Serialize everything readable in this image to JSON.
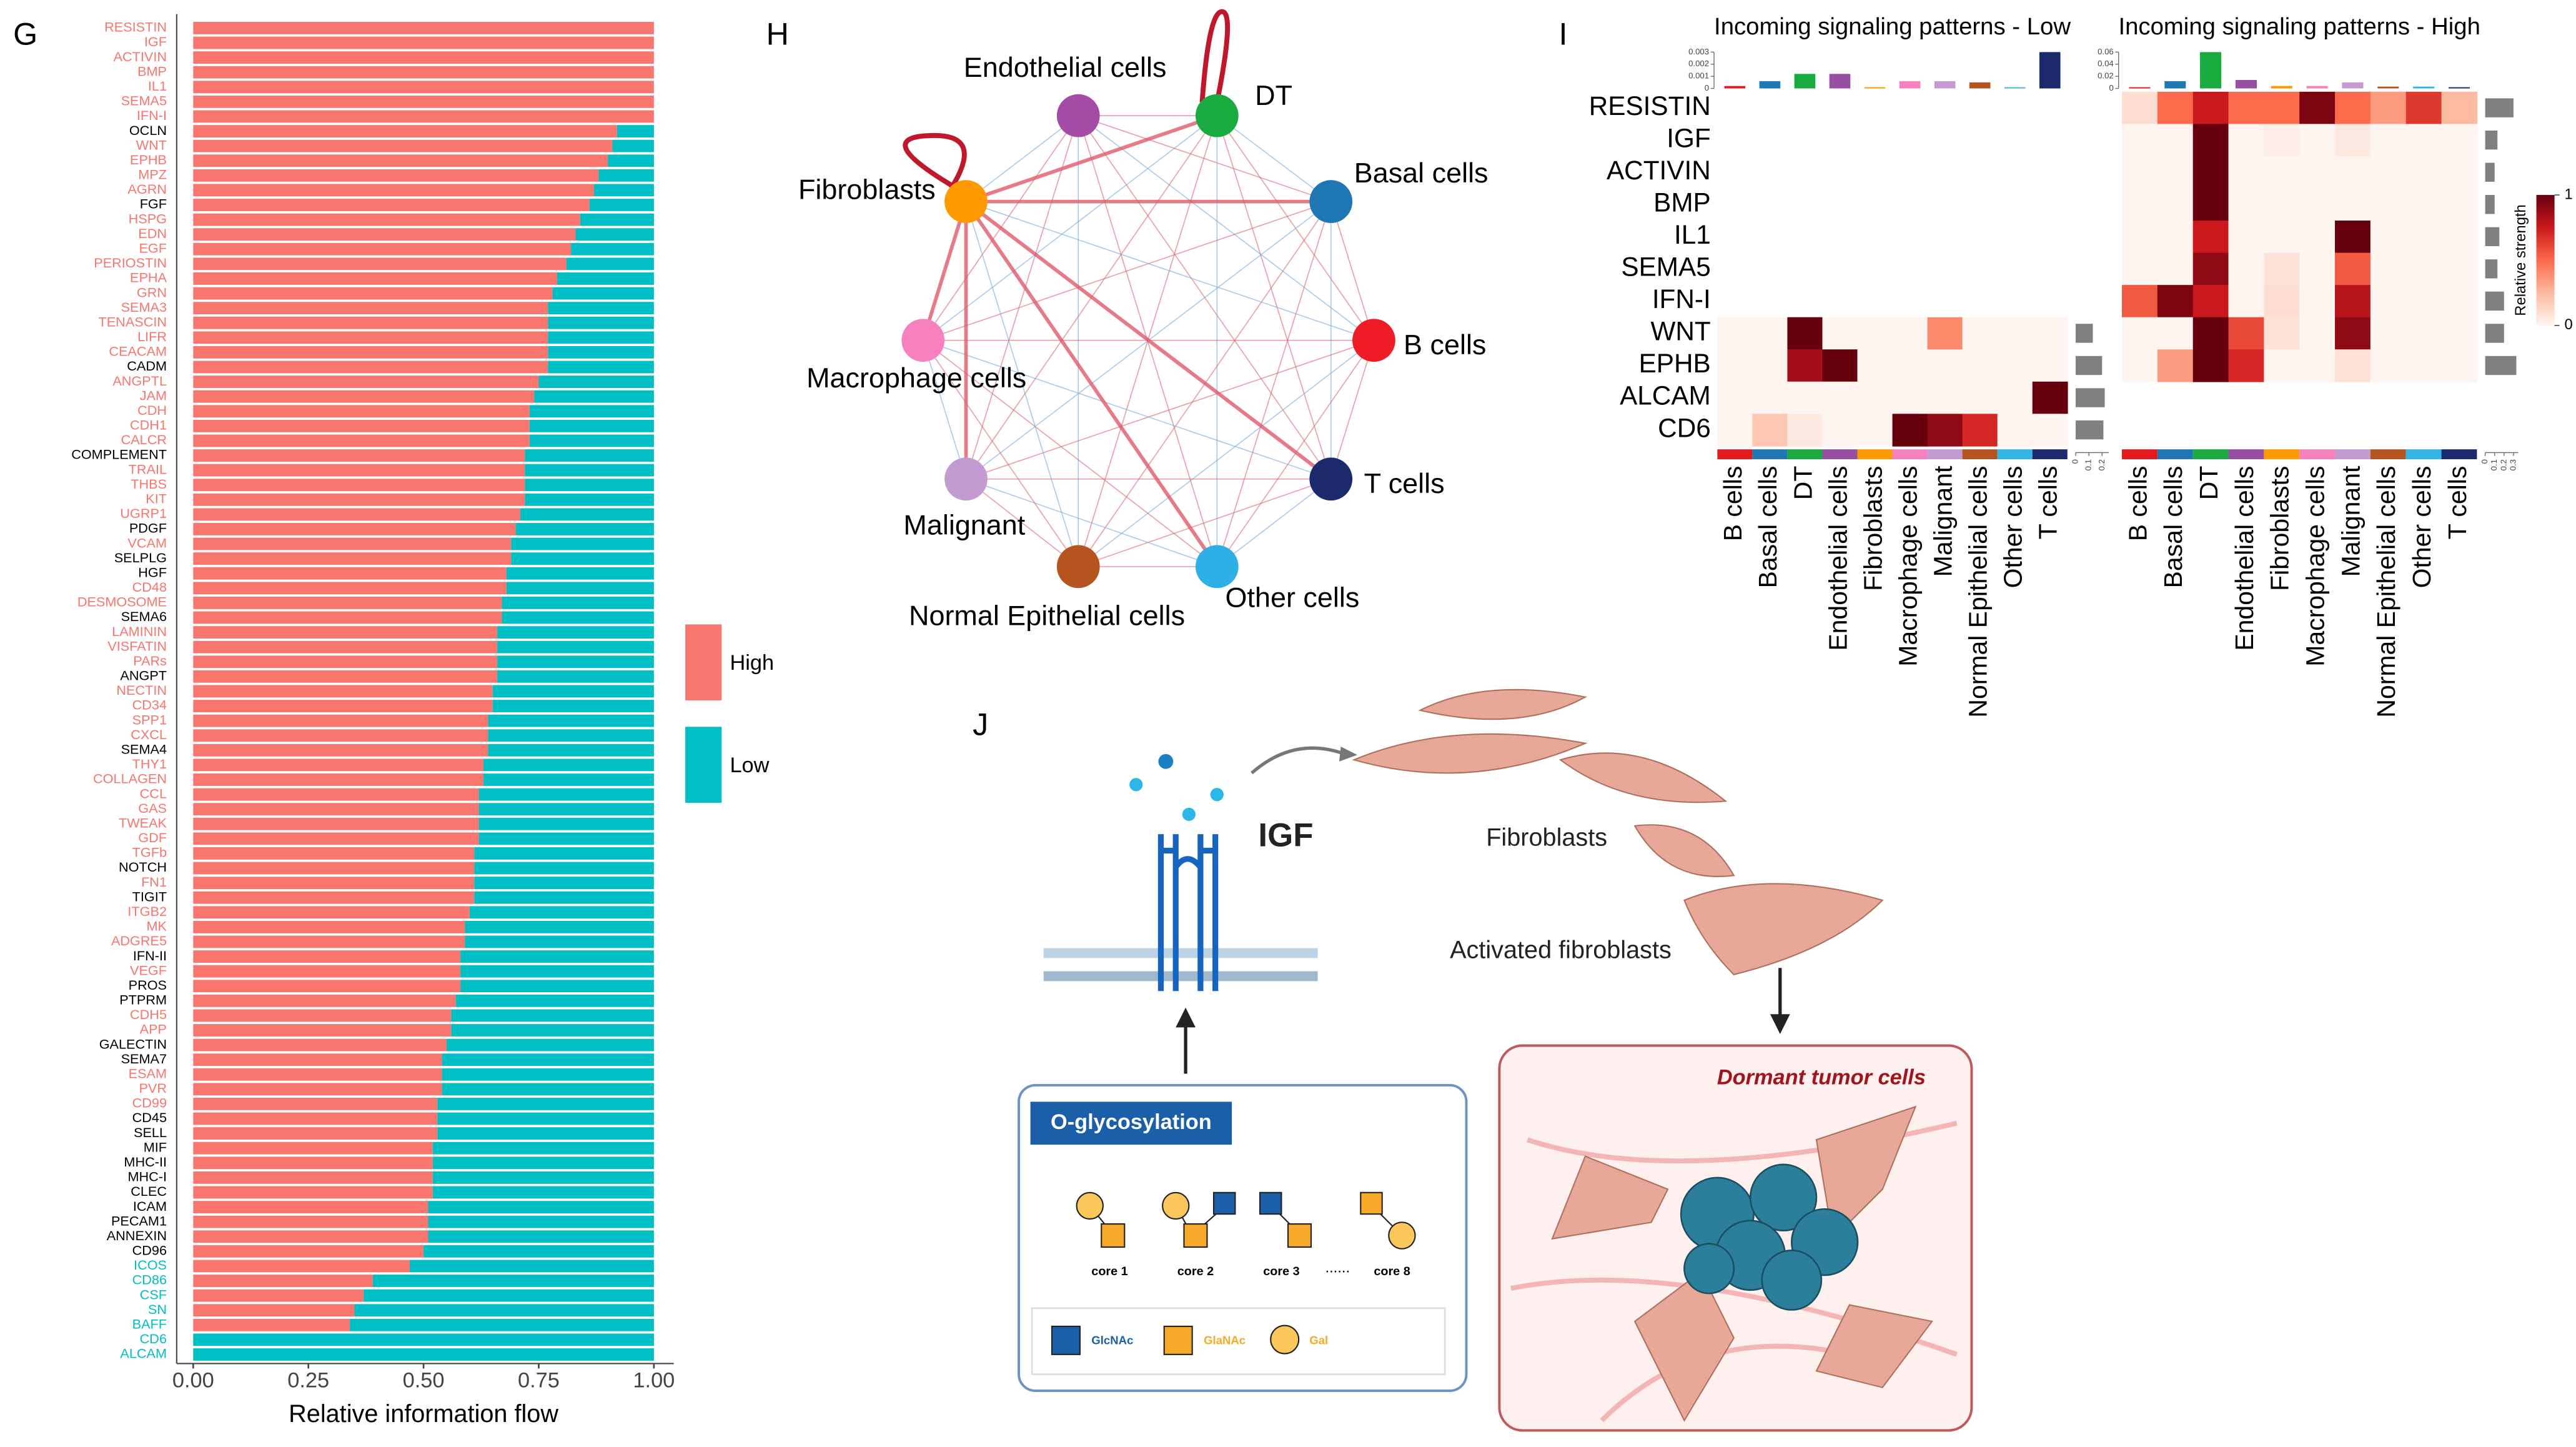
{
  "panels": {
    "g": "G",
    "h": "H",
    "i": "I",
    "j": "J"
  },
  "chart_data": [
    {
      "type": "barh_stacked",
      "categories": [
        "RESISTIN",
        "IGF",
        "ACTIVIN",
        "BMP",
        "IL1",
        "SEMA5",
        "IFN-I",
        "OCLN",
        "WNT",
        "EPHB",
        "MPZ",
        "AGRN",
        "FGF",
        "HSPG",
        "EDN",
        "EGF",
        "PERIOSTIN",
        "EPHA",
        "GRN",
        "SEMA3",
        "TENASCIN",
        "LIFR",
        "CEACAM",
        "CADM",
        "ANGPTL",
        "JAM",
        "CDH",
        "CDH1",
        "CALCR",
        "COMPLEMENT",
        "TRAIL",
        "THBS",
        "KIT",
        "UGRP1",
        "PDGF",
        "VCAM",
        "SELPLG",
        "HGF",
        "CD48",
        "DESMOSOME",
        "SEMA6",
        "LAMININ",
        "VISFATIN",
        "PARs",
        "ANGPT",
        "NECTIN",
        "CD34",
        "SPP1",
        "CXCL",
        "SEMA4",
        "THY1",
        "COLLAGEN",
        "CCL",
        "GAS",
        "TWEAK",
        "GDF",
        "TGFb",
        "NOTCH",
        "FN1",
        "TIGIT",
        "ITGB2",
        "MK",
        "ADGRE5",
        "IFN-II",
        "VEGF",
        "PROS",
        "PTPRM",
        "CDH5",
        "APP",
        "GALECTIN",
        "SEMA7",
        "ESAM",
        "PVR",
        "CD99",
        "CD45",
        "SELL",
        "MIF",
        "MHC-II",
        "MHC-I",
        "CLEC",
        "ICAM",
        "PECAM1",
        "ANNEXIN",
        "CD96",
        "ICOS",
        "CD86",
        "CSF",
        "SN",
        "BAFF",
        "CD6",
        "ALCAM"
      ],
      "label_colors": [
        "#f8766d",
        "#f8766d",
        "#f8766d",
        "#f8766d",
        "#f8766d",
        "#f8766d",
        "#f8766d",
        "#000000",
        "#f8766d",
        "#f8766d",
        "#f8766d",
        "#f8766d",
        "#000000",
        "#f8766d",
        "#f8766d",
        "#f8766d",
        "#f8766d",
        "#f8766d",
        "#f8766d",
        "#f8766d",
        "#f8766d",
        "#f8766d",
        "#f8766d",
        "#000000",
        "#f8766d",
        "#f8766d",
        "#f8766d",
        "#f8766d",
        "#f8766d",
        "#000000",
        "#f8766d",
        "#f8766d",
        "#f8766d",
        "#f8766d",
        "#000000",
        "#f8766d",
        "#000000",
        "#000000",
        "#f8766d",
        "#f8766d",
        "#000000",
        "#f8766d",
        "#f8766d",
        "#f8766d",
        "#000000",
        "#f8766d",
        "#f8766d",
        "#f8766d",
        "#f8766d",
        "#000000",
        "#f8766d",
        "#f8766d",
        "#f8766d",
        "#f8766d",
        "#f8766d",
        "#f8766d",
        "#f8766d",
        "#000000",
        "#f8766d",
        "#000000",
        "#f8766d",
        "#f8766d",
        "#f8766d",
        "#000000",
        "#f8766d",
        "#000000",
        "#000000",
        "#f8766d",
        "#f8766d",
        "#000000",
        "#000000",
        "#f8766d",
        "#f8766d",
        "#f8766d",
        "#000000",
        "#000000",
        "#000000",
        "#000000",
        "#000000",
        "#000000",
        "#000000",
        "#000000",
        "#000000",
        "#000000",
        "#00bfc4",
        "#00bfc4",
        "#00bfc4",
        "#00bfc4",
        "#00bfc4",
        "#00bfc4",
        "#00bfc4"
      ],
      "series": [
        {
          "name": "High",
          "color": "#f8766d",
          "values": [
            1,
            1,
            1,
            1,
            1,
            1,
            1,
            0.92,
            0.91,
            0.9,
            0.88,
            0.87,
            0.86,
            0.84,
            0.83,
            0.82,
            0.81,
            0.79,
            0.78,
            0.77,
            0.77,
            0.77,
            0.77,
            0.77,
            0.75,
            0.74,
            0.73,
            0.73,
            0.73,
            0.72,
            0.72,
            0.72,
            0.72,
            0.71,
            0.7,
            0.69,
            0.69,
            0.68,
            0.68,
            0.67,
            0.67,
            0.66,
            0.66,
            0.66,
            0.66,
            0.65,
            0.65,
            0.64,
            0.64,
            0.64,
            0.63,
            0.63,
            0.62,
            0.62,
            0.62,
            0.62,
            0.61,
            0.61,
            0.61,
            0.61,
            0.6,
            0.59,
            0.59,
            0.58,
            0.58,
            0.58,
            0.57,
            0.56,
            0.56,
            0.55,
            0.54,
            0.54,
            0.54,
            0.53,
            0.53,
            0.53,
            0.52,
            0.52,
            0.52,
            0.52,
            0.51,
            0.51,
            0.51,
            0.5,
            0.47,
            0.39,
            0.37,
            0.35,
            0.34,
            0,
            0
          ]
        },
        {
          "name": "Low",
          "color": "#00bfc4",
          "values": [
            0,
            0,
            0,
            0,
            0,
            0,
            0,
            0.08,
            0.09,
            0.1,
            0.12,
            0.13,
            0.14,
            0.16,
            0.17,
            0.18,
            0.19,
            0.21,
            0.22,
            0.23,
            0.23,
            0.23,
            0.23,
            0.23,
            0.25,
            0.26,
            0.27,
            0.27,
            0.27,
            0.28,
            0.28,
            0.28,
            0.28,
            0.29,
            0.3,
            0.31,
            0.31,
            0.32,
            0.32,
            0.33,
            0.33,
            0.34,
            0.34,
            0.34,
            0.34,
            0.35,
            0.35,
            0.36,
            0.36,
            0.36,
            0.37,
            0.37,
            0.38,
            0.38,
            0.38,
            0.38,
            0.39,
            0.39,
            0.39,
            0.39,
            0.4,
            0.41,
            0.41,
            0.42,
            0.42,
            0.42,
            0.43,
            0.44,
            0.44,
            0.45,
            0.46,
            0.46,
            0.46,
            0.47,
            0.47,
            0.47,
            0.48,
            0.48,
            0.48,
            0.48,
            0.49,
            0.49,
            0.49,
            0.5,
            0.53,
            0.61,
            0.63,
            0.65,
            0.66,
            1,
            1
          ]
        }
      ],
      "xlabel": "Relative information flow",
      "xlim": [
        0,
        1
      ],
      "xticks": [
        {
          "value": 0,
          "label": "0.00"
        },
        {
          "value": 0.25,
          "label": "0.25"
        },
        {
          "value": 0.5,
          "label": "0.50"
        },
        {
          "value": 0.75,
          "label": "0.75"
        },
        {
          "value": 1,
          "label": "1.00"
        }
      ],
      "legend": "right"
    },
    {
      "type": "heatmap",
      "title": "Incoming signaling patterns - Low",
      "rows": [
        "RESISTIN",
        "IGF",
        "ACTIVIN",
        "BMP",
        "IL1",
        "SEMA5",
        "IFN-I",
        "WNT",
        "EPHB",
        "ALCAM",
        "CD6"
      ],
      "columns": [
        "B cells",
        "Basal cells",
        "DT",
        "Endothelial cells",
        "Fibroblasts",
        "Macrophage cells",
        "Malignant",
        "Normal Epithelial cells",
        "Other cells",
        "T cells"
      ],
      "column_colors": [
        "#e41a1c",
        "#1f78b4",
        "#1aab40",
        "#984ea3",
        "#ff9900",
        "#f781bf",
        "#c49bd0",
        "#b5541f",
        "#33b5e5",
        "#1a2a6c"
      ],
      "values": [
        [
          null,
          null,
          null,
          null,
          null,
          null,
          null,
          null,
          null,
          null
        ],
        [
          null,
          null,
          null,
          null,
          null,
          null,
          null,
          null,
          null,
          null
        ],
        [
          null,
          null,
          null,
          null,
          null,
          null,
          null,
          null,
          null,
          null
        ],
        [
          null,
          null,
          null,
          null,
          null,
          null,
          null,
          null,
          null,
          null
        ],
        [
          null,
          null,
          null,
          null,
          null,
          null,
          null,
          null,
          null,
          null
        ],
        [
          null,
          null,
          null,
          null,
          null,
          null,
          null,
          null,
          null,
          null
        ],
        [
          null,
          null,
          null,
          null,
          null,
          null,
          null,
          null,
          null,
          null
        ],
        [
          0,
          0,
          1,
          0,
          0,
          0,
          0.4,
          0,
          0,
          0
        ],
        [
          0,
          0,
          0.85,
          1,
          0,
          0,
          0,
          0,
          0,
          0
        ],
        [
          0,
          0,
          0,
          0,
          0,
          0,
          0,
          0,
          0,
          1
        ],
        [
          0,
          0.2,
          0.05,
          0,
          0,
          1,
          0.9,
          0.7,
          0,
          0
        ]
      ],
      "column_totals": [
        0.0002,
        0.0006,
        0.0012,
        0.0012,
        0.0001,
        0.0006,
        0.0006,
        0.0005,
        0.0001,
        0.003
      ],
      "column_totals_ylim": [
        0,
        0.003
      ],
      "column_totals_ticks": [
        0,
        0.001,
        0.002,
        0.003
      ],
      "row_totals": [
        null,
        null,
        null,
        null,
        null,
        null,
        null,
        0.13,
        0.2,
        0.22,
        0.21
      ],
      "row_totals_xlim": [
        0,
        0.25
      ],
      "row_totals_ticks": [
        0,
        0.1,
        0.2
      ]
    },
    {
      "type": "heatmap",
      "title": "Incoming signaling patterns - High",
      "columns": [
        "B cells",
        "Basal cells",
        "DT",
        "Endothelial cells",
        "Fibroblasts",
        "Macrophage cells",
        "Malignant",
        "Normal Epithelial cells",
        "Other cells",
        "T cells"
      ],
      "column_colors": [
        "#e41a1c",
        "#1f78b4",
        "#1aab40",
        "#984ea3",
        "#ff9900",
        "#f781bf",
        "#c49bd0",
        "#b5541f",
        "#33b5e5",
        "#1a2a6c"
      ],
      "values": [
        [
          0.1,
          0.5,
          0.75,
          0.5,
          0.5,
          0.95,
          0.5,
          0.35,
          0.65,
          0.25
        ],
        [
          0,
          0,
          1,
          0,
          0.03,
          0,
          0.05,
          0,
          0,
          0
        ],
        [
          0,
          0,
          1,
          0,
          0,
          0,
          0,
          0,
          0,
          0
        ],
        [
          0,
          0,
          1,
          0,
          0,
          0,
          0,
          0,
          0,
          0
        ],
        [
          0,
          0,
          0.75,
          0,
          0,
          0,
          1,
          0,
          0,
          0
        ],
        [
          0,
          0,
          0.9,
          0,
          0.08,
          0,
          0.55,
          0,
          0,
          0
        ],
        [
          0.55,
          0.95,
          0.75,
          0,
          0.1,
          0,
          0.8,
          0,
          0,
          0
        ],
        [
          0,
          0,
          1,
          0.6,
          0.08,
          0,
          0.9,
          0,
          0,
          0
        ],
        [
          0,
          0.35,
          1,
          0.7,
          0,
          0,
          0.08,
          0,
          0,
          0
        ],
        [
          null,
          null,
          null,
          null,
          null,
          null,
          null,
          null,
          null,
          null
        ],
        [
          null,
          null,
          null,
          null,
          null,
          null,
          null,
          null,
          null,
          null
        ]
      ],
      "column_totals": [
        0.002,
        0.012,
        0.06,
        0.014,
        0.004,
        0.004,
        0.01,
        0.003,
        0.003,
        0.002
      ],
      "column_totals_ylim": [
        0,
        0.06
      ],
      "column_totals_ticks": [
        0,
        0.02,
        0.04,
        0.06
      ],
      "row_totals": [
        0.3,
        0.13,
        0.1,
        0.1,
        0.15,
        0.13,
        0.2,
        0.2,
        0.33,
        null,
        null
      ],
      "row_totals_xlim": [
        0,
        0.35
      ],
      "row_totals_ticks": [
        0,
        0.1,
        0.2,
        0.3
      ],
      "colorbar": {
        "label": "Relative strength",
        "ticks": [
          0,
          1
        ]
      }
    }
  ],
  "network": {
    "nodes": [
      {
        "label": "Endothelial cells",
        "color": "#a44ba6"
      },
      {
        "label": "DT",
        "color": "#1aab40"
      },
      {
        "label": "Basal cells",
        "color": "#1f78b4"
      },
      {
        "label": "B cells",
        "color": "#ee1c25"
      },
      {
        "label": "T cells",
        "color": "#1a2a6c"
      },
      {
        "label": "Other cells",
        "color": "#2eafe6"
      },
      {
        "label": "Normal Epithelial cells",
        "color": "#b5541f"
      },
      {
        "label": "Malignant",
        "color": "#c49bd0"
      },
      {
        "label": "Macrophage cells",
        "color": "#f781bf"
      },
      {
        "label": "Fibroblasts",
        "color": "#ff9900"
      }
    ]
  },
  "diagram": {
    "ligand": "IGF",
    "fibroblasts": "Fibroblasts",
    "activated": "Activated fibroblasts",
    "dormant": "Dormant tumor cells",
    "glyco": "O-glycosylation",
    "cores": [
      "core 1",
      "core 2",
      "core 3",
      "......",
      "core 8"
    ],
    "sugars": [
      "GlcNAc",
      "GlaNAc",
      "Gal"
    ]
  }
}
